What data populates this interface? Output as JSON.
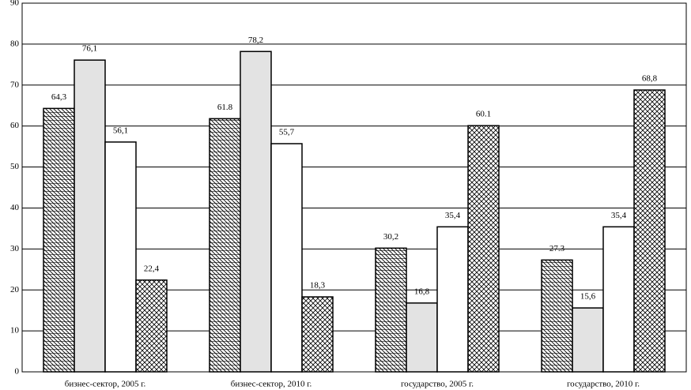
{
  "chart_data": {
    "type": "bar",
    "categories": [
      "бизнес-сектор, 2005 г.",
      "бизнес-сектор, 2010 г.",
      "государство, 2005 г.",
      "государство, 2010 г."
    ],
    "series": [
      {
        "color": "#ffffff",
        "pattern": "dense-hatch",
        "values": [
          64.3,
          61.8,
          30.2,
          27.3
        ],
        "value_labels": [
          "64,3",
          "61.8",
          "30,2",
          "27.3"
        ]
      },
      {
        "color": "#e3e3e3",
        "pattern": "solid",
        "values": [
          76.1,
          78.2,
          16.8,
          15.6
        ],
        "value_labels": [
          "76,1",
          "78,2",
          "16,8",
          "15,6"
        ]
      },
      {
        "color": "#ffffff",
        "pattern": "solid",
        "values": [
          56.1,
          55.7,
          35.4,
          35.4
        ],
        "value_labels": [
          "56,1",
          "55,7",
          "35,4",
          "35,4"
        ]
      },
      {
        "color": "#ffffff",
        "pattern": "crosshatch",
        "values": [
          22.4,
          18.3,
          60.1,
          68.8
        ],
        "value_labels": [
          "22,4",
          "18,3",
          "60.1",
          "68,8"
        ]
      }
    ],
    "ylim": [
      0,
      90
    ],
    "yticks": [
      0,
      10,
      20,
      30,
      40,
      50,
      60,
      70,
      80,
      90
    ],
    "grid": true
  }
}
